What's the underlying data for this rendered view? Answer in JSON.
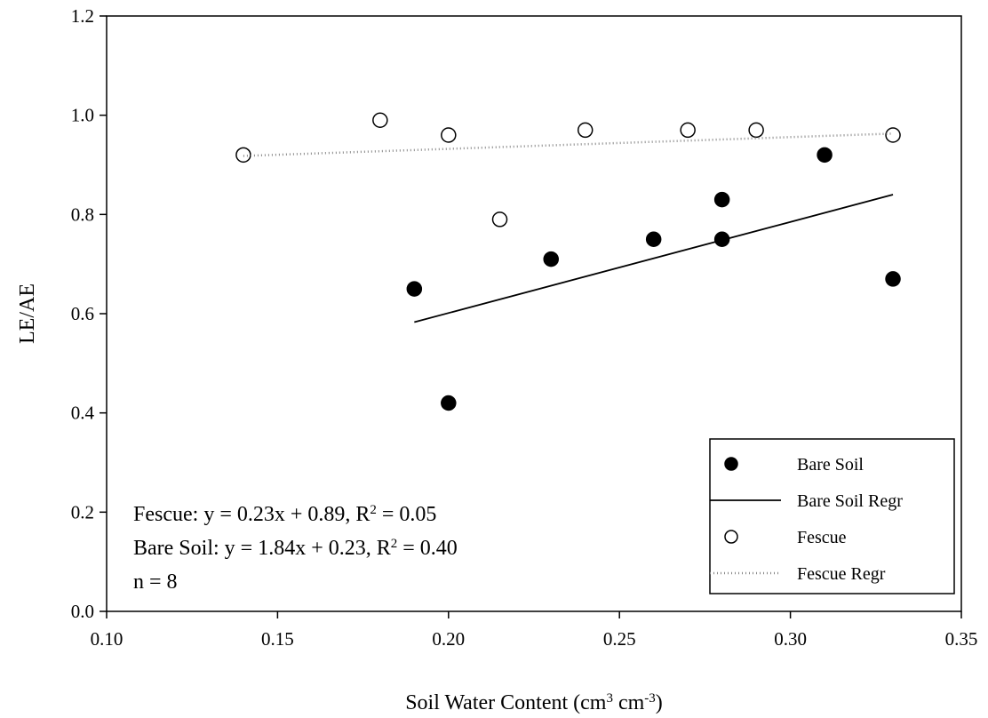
{
  "chart_data": {
    "type": "scatter",
    "xlabel": [
      "Soil Water Content (cm",
      "3",
      " cm",
      "-3",
      ")"
    ],
    "ylabel": "LE/AE",
    "xlim": [
      0.1,
      0.35
    ],
    "ylim": [
      0.0,
      1.2
    ],
    "xticks": [
      {
        "value": 0.1,
        "label": "0.10"
      },
      0.15,
      {
        "value": 0.2,
        "label": "0.20"
      },
      0.25,
      {
        "value": 0.3,
        "label": "0.30"
      },
      0.35
    ],
    "yticks": [
      {
        "value": 0,
        "label": "0.0"
      },
      0.2,
      0.4,
      0.6,
      0.8,
      {
        "value": 1.0,
        "label": "1.0"
      },
      1.2
    ],
    "legend": "lower right",
    "series": [
      {
        "name": "Bare Soil",
        "kind": "scatter",
        "color": "#000000",
        "marker": "filled",
        "x": [
          0.19,
          0.2,
          0.23,
          0.26,
          0.28,
          0.28,
          0.31,
          0.33
        ],
        "values": [
          0.65,
          0.42,
          0.71,
          0.75,
          0.83,
          0.75,
          0.92,
          0.67
        ]
      },
      {
        "name": "Bare Soil Regr",
        "kind": "line",
        "color": "#000000",
        "dash": "none",
        "x": [
          0.19,
          0.33
        ],
        "values": [
          0.583,
          0.84
        ]
      },
      {
        "name": "Fescue",
        "kind": "scatter",
        "color": "#000000",
        "marker": "open",
        "x": [
          0.14,
          0.18,
          0.2,
          0.215,
          0.24,
          0.27,
          0.29,
          0.33
        ],
        "values": [
          0.92,
          0.99,
          0.96,
          0.79,
          0.97,
          0.97,
          0.97,
          0.96
        ]
      },
      {
        "name": "Fescue Regr",
        "kind": "line",
        "color": "#888888",
        "dash": "1 3",
        "x": [
          0.14,
          0.33
        ],
        "values": [
          0.918,
          0.963
        ]
      }
    ],
    "annotations": [
      [
        "Fescue: y = 0.23x + 0.89, R",
        "2",
        " = 0.05"
      ],
      [
        "Bare Soil: y = 1.84x + 0.23, R",
        "2",
        " = 0.40"
      ],
      [
        "n = 8"
      ]
    ]
  }
}
